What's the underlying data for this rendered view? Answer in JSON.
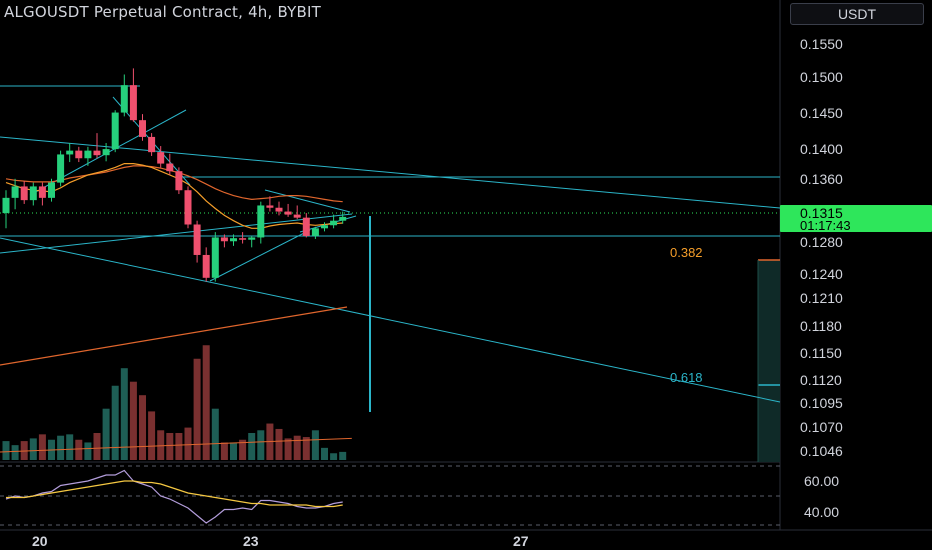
{
  "header": {
    "title": "ALGOUSDT Perpetual Contract, 4h, BYBIT",
    "currency_button": "USDT"
  },
  "colors": {
    "background": "#000000",
    "up": "#26d07c",
    "down": "#f0506e",
    "up_volume": "#1e5e55",
    "down_volume": "#7a3030",
    "trendline": "#2bb5c9",
    "ma_short": "#f59e2a",
    "ma_long": "#e0662d",
    "rsi": "#b39ddb",
    "rsi_ma": "#f5c842",
    "price_label_bg": "#2ee65b",
    "axis_text": "#d1d4dc"
  },
  "chart_data": {
    "type": "candlestick",
    "title": "ALGOUSDT Perpetual Contract, 4h, BYBIT",
    "price_axis_ticks": [
      "0.1550",
      "0.1500",
      "0.1450",
      "0.1400",
      "0.1360",
      "0.1280",
      "0.1240",
      "0.1210",
      "0.1180",
      "0.1150",
      "0.1120",
      "0.1095",
      "0.1070",
      "0.1046"
    ],
    "rsi_axis_ticks": [
      "60.00",
      "40.00"
    ],
    "time_axis_ticks": [
      "20",
      "23",
      "27"
    ],
    "last_price": "0.1315",
    "countdown": "01:17:43",
    "fib_levels": [
      {
        "label": "0.382"
      },
      {
        "label": "0.618"
      }
    ],
    "candles": [
      {
        "o": 0.132,
        "h": 0.135,
        "l": 0.13,
        "c": 0.134
      },
      {
        "o": 0.134,
        "h": 0.1365,
        "l": 0.1325,
        "c": 0.1355
      },
      {
        "o": 0.1355,
        "h": 0.1362,
        "l": 0.1332,
        "c": 0.1337
      },
      {
        "o": 0.1337,
        "h": 0.136,
        "l": 0.133,
        "c": 0.1355
      },
      {
        "o": 0.1355,
        "h": 0.136,
        "l": 0.133,
        "c": 0.134
      },
      {
        "o": 0.134,
        "h": 0.1365,
        "l": 0.1335,
        "c": 0.136
      },
      {
        "o": 0.136,
        "h": 0.1402,
        "l": 0.1355,
        "c": 0.1397
      },
      {
        "o": 0.1397,
        "h": 0.1412,
        "l": 0.1387,
        "c": 0.1402
      },
      {
        "o": 0.1402,
        "h": 0.1407,
        "l": 0.1387,
        "c": 0.1392
      },
      {
        "o": 0.1392,
        "h": 0.1407,
        "l": 0.1382,
        "c": 0.1402
      },
      {
        "o": 0.1402,
        "h": 0.1425,
        "l": 0.1392,
        "c": 0.1396
      },
      {
        "o": 0.1396,
        "h": 0.1412,
        "l": 0.1388,
        "c": 0.1404
      },
      {
        "o": 0.1404,
        "h": 0.1455,
        "l": 0.14,
        "c": 0.1452
      },
      {
        "o": 0.1452,
        "h": 0.1502,
        "l": 0.1447,
        "c": 0.1488
      },
      {
        "o": 0.1488,
        "h": 0.151,
        "l": 0.144,
        "c": 0.1442
      },
      {
        "o": 0.1442,
        "h": 0.145,
        "l": 0.1415,
        "c": 0.142
      },
      {
        "o": 0.142,
        "h": 0.1425,
        "l": 0.1395,
        "c": 0.14
      },
      {
        "o": 0.14,
        "h": 0.1408,
        "l": 0.138,
        "c": 0.1385
      },
      {
        "o": 0.1385,
        "h": 0.1398,
        "l": 0.137,
        "c": 0.1375
      },
      {
        "o": 0.1375,
        "h": 0.138,
        "l": 0.1345,
        "c": 0.135
      },
      {
        "o": 0.135,
        "h": 0.1355,
        "l": 0.13,
        "c": 0.1305
      },
      {
        "o": 0.1305,
        "h": 0.131,
        "l": 0.1255,
        "c": 0.1265
      },
      {
        "o": 0.1265,
        "h": 0.1275,
        "l": 0.123,
        "c": 0.1235
      },
      {
        "o": 0.1235,
        "h": 0.1295,
        "l": 0.123,
        "c": 0.1288
      },
      {
        "o": 0.1288,
        "h": 0.1292,
        "l": 0.1275,
        "c": 0.1283
      },
      {
        "o": 0.1283,
        "h": 0.1292,
        "l": 0.1277,
        "c": 0.1287
      },
      {
        "o": 0.1287,
        "h": 0.1295,
        "l": 0.128,
        "c": 0.1285
      },
      {
        "o": 0.1285,
        "h": 0.129,
        "l": 0.1275,
        "c": 0.1288
      },
      {
        "o": 0.1288,
        "h": 0.1335,
        "l": 0.128,
        "c": 0.133
      },
      {
        "o": 0.133,
        "h": 0.1342,
        "l": 0.1322,
        "c": 0.1327
      },
      {
        "o": 0.1327,
        "h": 0.1335,
        "l": 0.1317,
        "c": 0.1322
      },
      {
        "o": 0.1322,
        "h": 0.1332,
        "l": 0.1315,
        "c": 0.1318
      },
      {
        "o": 0.1318,
        "h": 0.133,
        "l": 0.1312,
        "c": 0.1314
      },
      {
        "o": 0.1314,
        "h": 0.132,
        "l": 0.1288,
        "c": 0.129
      },
      {
        "o": 0.129,
        "h": 0.1302,
        "l": 0.1286,
        "c": 0.13
      },
      {
        "o": 0.13,
        "h": 0.1308,
        "l": 0.1296,
        "c": 0.1304
      },
      {
        "o": 0.1304,
        "h": 0.1318,
        "l": 0.13,
        "c": 0.131
      },
      {
        "o": 0.131,
        "h": 0.1322,
        "l": 0.1306,
        "c": 0.1315
      }
    ],
    "volume": [
      14,
      11,
      14,
      16,
      19,
      15,
      18,
      19,
      15,
      13,
      20,
      38,
      55,
      68,
      58,
      48,
      36,
      22,
      20,
      20,
      24,
      75,
      85,
      38,
      13,
      13,
      15,
      20,
      22,
      27,
      23,
      16,
      18,
      17,
      22,
      9,
      5,
      6
    ],
    "volume_ma_start": 8,
    "volume_ma_end": 16,
    "rsi": [
      48,
      50,
      49,
      50,
      52,
      53,
      57,
      58,
      59,
      60,
      62,
      64,
      64,
      67,
      60,
      58,
      56,
      50,
      48,
      45,
      42,
      37,
      32,
      36,
      41,
      41,
      42,
      41,
      47,
      47,
      46,
      45,
      43,
      42,
      42,
      43,
      45,
      46
    ],
    "rsi_ma": [
      49,
      49,
      49,
      50,
      51,
      52,
      53,
      54,
      55,
      56,
      57,
      58,
      59,
      60,
      60,
      59,
      59,
      58,
      56,
      54,
      52,
      51,
      50,
      49,
      48,
      47,
      46,
      45,
      45,
      44,
      44,
      44,
      44,
      44,
      43,
      43,
      43,
      44
    ],
    "ma_short": [
      0.136,
      0.1356,
      0.1352,
      0.135,
      0.1349,
      0.1348,
      0.1353,
      0.136,
      0.1365,
      0.137,
      0.1373,
      0.1376,
      0.138,
      0.1385,
      0.1385,
      0.1383,
      0.138,
      0.1375,
      0.137,
      0.1365,
      0.1358,
      0.1348,
      0.1336,
      0.1326,
      0.1317,
      0.131,
      0.1304,
      0.13,
      0.13,
      0.1303,
      0.1305,
      0.1306,
      0.1307,
      0.1305,
      0.1304,
      0.1305,
      0.1306,
      0.1307
    ],
    "ma_mid": [
      0.1365,
      0.1363,
      0.1362,
      0.1361,
      0.1361,
      0.1361,
      0.1363,
      0.1366,
      0.1368,
      0.137,
      0.1372,
      0.1374,
      0.1377,
      0.138,
      0.1382,
      0.1382,
      0.1381,
      0.1379,
      0.1376,
      0.1373,
      0.1369,
      0.1364,
      0.1358,
      0.1352,
      0.1347,
      0.1343,
      0.134,
      0.1338,
      0.1339,
      0.134,
      0.1342,
      0.1343,
      0.1343,
      0.1342,
      0.134,
      0.1338,
      0.1336,
      0.1335
    ],
    "ma_long_start": 0.115,
    "ma_long_end": 0.12
  }
}
